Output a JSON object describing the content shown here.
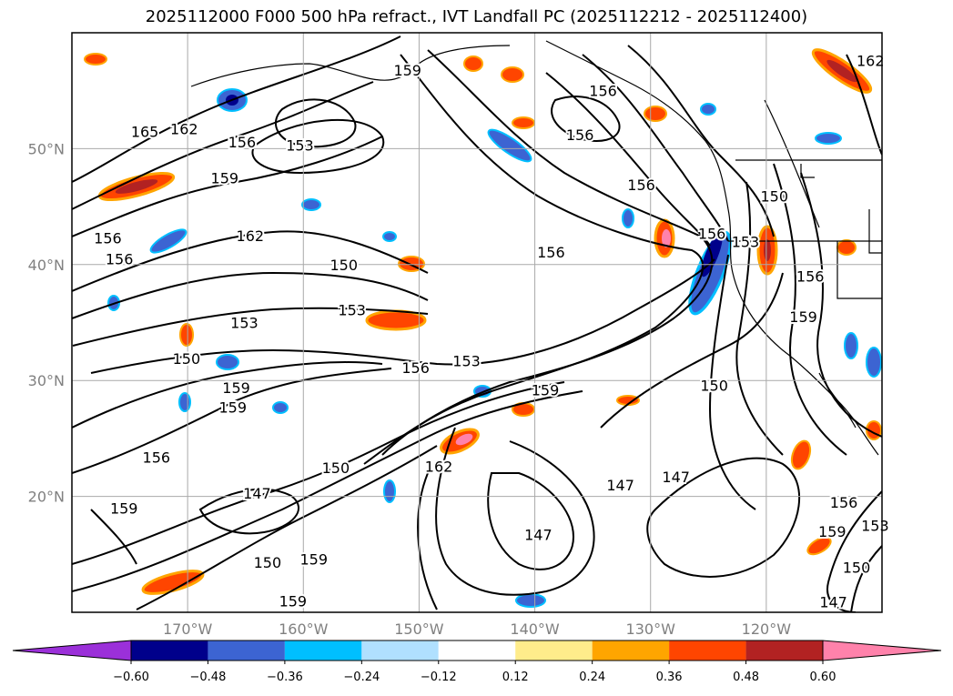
{
  "title": "2025112000 F000 500 hPa refract., IVT Landfall PC (2025112212 - 2025112400)",
  "map": {
    "lon_range": [
      -180,
      -110
    ],
    "lat_range": [
      10,
      60
    ],
    "lat_ticks": [
      {
        "value": 50,
        "label": "50°N"
      },
      {
        "value": 40,
        "label": "40°N"
      },
      {
        "value": 30,
        "label": "30°N"
      },
      {
        "value": 20,
        "label": "20°N"
      }
    ],
    "lon_ticks": [
      {
        "value": -170,
        "label": "170°W"
      },
      {
        "value": -160,
        "label": "160°W"
      },
      {
        "value": -150,
        "label": "150°W"
      },
      {
        "value": -140,
        "label": "140°W"
      },
      {
        "value": -130,
        "label": "130°W"
      },
      {
        "value": -120,
        "label": "120°W"
      }
    ],
    "contour_labels": [
      {
        "text": "159",
        "lon": -151.0,
        "lat": 56.8
      },
      {
        "text": "165",
        "lon": -173.7,
        "lat": 51.5
      },
      {
        "text": "162",
        "lon": -170.3,
        "lat": 51.7
      },
      {
        "text": "156",
        "lon": -165.3,
        "lat": 50.6
      },
      {
        "text": "153",
        "lon": -160.3,
        "lat": 50.3
      },
      {
        "text": "159",
        "lon": -166.8,
        "lat": 47.5
      },
      {
        "text": "156",
        "lon": -176.9,
        "lat": 42.3
      },
      {
        "text": "156",
        "lon": -175.9,
        "lat": 40.5
      },
      {
        "text": "162",
        "lon": -164.6,
        "lat": 42.5
      },
      {
        "text": "150",
        "lon": -156.5,
        "lat": 40.0
      },
      {
        "text": "153",
        "lon": -165.1,
        "lat": 35.0
      },
      {
        "text": "153",
        "lon": -155.8,
        "lat": 36.1
      },
      {
        "text": "150",
        "lon": -170.1,
        "lat": 31.9
      },
      {
        "text": "156",
        "lon": -150.3,
        "lat": 31.1
      },
      {
        "text": "153",
        "lon": -145.9,
        "lat": 31.7
      },
      {
        "text": "159",
        "lon": -165.8,
        "lat": 29.4
      },
      {
        "text": "159",
        "lon": -166.1,
        "lat": 27.7
      },
      {
        "text": "159",
        "lon": -139.1,
        "lat": 29.2
      },
      {
        "text": "156",
        "lon": -172.7,
        "lat": 23.4
      },
      {
        "text": "150",
        "lon": -157.2,
        "lat": 22.5
      },
      {
        "text": "162",
        "lon": -148.3,
        "lat": 22.6
      },
      {
        "text": "147",
        "lon": -164.0,
        "lat": 20.3
      },
      {
        "text": "159",
        "lon": -175.5,
        "lat": 19.0
      },
      {
        "text": "150",
        "lon": -163.1,
        "lat": 14.3
      },
      {
        "text": "159",
        "lon": -159.1,
        "lat": 14.6
      },
      {
        "text": "159",
        "lon": -160.9,
        "lat": 11.0
      },
      {
        "text": "147",
        "lon": -139.7,
        "lat": 16.7
      },
      {
        "text": "147",
        "lon": -132.6,
        "lat": 21.0
      },
      {
        "text": "147",
        "lon": -127.8,
        "lat": 21.7
      },
      {
        "text": "156",
        "lon": -134.1,
        "lat": 55.0
      },
      {
        "text": "156",
        "lon": -136.1,
        "lat": 51.2
      },
      {
        "text": "156",
        "lon": -130.8,
        "lat": 46.9
      },
      {
        "text": "156",
        "lon": -138.6,
        "lat": 41.1
      },
      {
        "text": "156",
        "lon": -124.7,
        "lat": 42.7
      },
      {
        "text": "150",
        "lon": -124.5,
        "lat": 29.6
      },
      {
        "text": "153",
        "lon": -121.8,
        "lat": 42.0
      },
      {
        "text": "150",
        "lon": -119.3,
        "lat": 45.9
      },
      {
        "text": "156",
        "lon": -116.2,
        "lat": 39.0
      },
      {
        "text": "159",
        "lon": -116.8,
        "lat": 35.5
      },
      {
        "text": "162",
        "lon": -111.0,
        "lat": 57.6
      },
      {
        "text": "156",
        "lon": -113.3,
        "lat": 19.5
      },
      {
        "text": "159",
        "lon": -114.3,
        "lat": 17.0
      },
      {
        "text": "153",
        "lon": -110.6,
        "lat": 17.5
      },
      {
        "text": "150",
        "lon": -112.2,
        "lat": 13.9
      },
      {
        "text": "147",
        "lon": -114.2,
        "lat": 10.9
      }
    ]
  },
  "colorbar": {
    "levels": [
      "−0.60",
      "−0.48",
      "−0.36",
      "−0.24",
      "−0.12",
      "0.12",
      "0.24",
      "0.36",
      "0.48",
      "0.60"
    ],
    "colors": [
      "#9b30d9",
      "#00008b",
      "#3c64d2",
      "#00bfff",
      "#b0e0ff",
      "#ffffff",
      "#ffec8b",
      "#ffa500",
      "#ff4500",
      "#b22222",
      "#ff82ab"
    ]
  }
}
